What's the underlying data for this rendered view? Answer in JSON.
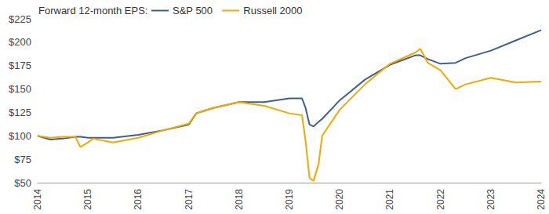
{
  "chart_data": {
    "type": "line",
    "title": "Forward 12-month EPS:",
    "x": [
      2014,
      2014.25,
      2014.5,
      2014.75,
      2014.85,
      2015,
      2015.1,
      2015.5,
      2016,
      2016.5,
      2017,
      2017.15,
      2017.5,
      2018,
      2018.5,
      2019,
      2019.25,
      2019.32,
      2019.4,
      2019.48,
      2019.58,
      2019.65,
      2020,
      2020.5,
      2021,
      2021.5,
      2021.6,
      2021.75,
      2022,
      2022.3,
      2022.5,
      2023,
      2023.5,
      2024
    ],
    "series": [
      {
        "name": "S&P 500",
        "color": "#3f5f8f",
        "values": [
          100,
          96,
          97,
          99,
          99,
          98,
          98,
          98,
          101,
          106,
          112,
          124,
          130,
          136,
          136,
          140,
          140,
          130,
          112,
          110,
          115,
          118,
          138,
          160,
          176,
          186,
          186,
          182,
          177,
          178,
          183,
          191,
          202,
          213
        ]
      },
      {
        "name": "Russell 2000",
        "color": "#f2a900",
        "values": [
          100,
          98,
          99,
          99,
          88,
          93,
          97,
          93,
          98,
          106,
          113,
          124,
          130,
          136,
          132,
          124,
          122,
          95,
          55,
          52,
          70,
          100,
          128,
          155,
          177,
          189,
          193,
          178,
          170,
          150,
          155,
          162,
          157,
          158
        ]
      }
    ],
    "xlim": [
      2014,
      2024
    ],
    "xticks": [
      2014,
      2015,
      2016,
      2017,
      2018,
      2019,
      2020,
      2021,
      2022,
      2023,
      2024
    ],
    "ylim": [
      50,
      225
    ],
    "yticks": [
      {
        "value": 50,
        "label": "$50"
      },
      {
        "value": 75,
        "label": "$75"
      },
      {
        "value": 100,
        "label": "$100"
      },
      {
        "value": 125,
        "label": "$125"
      },
      {
        "value": 150,
        "label": "$150"
      },
      {
        "value": 175,
        "label": "$175"
      },
      {
        "value": 200,
        "label": "$200"
      },
      {
        "value": 225,
        "label": "$225"
      }
    ],
    "grid": false,
    "legend": "top"
  }
}
